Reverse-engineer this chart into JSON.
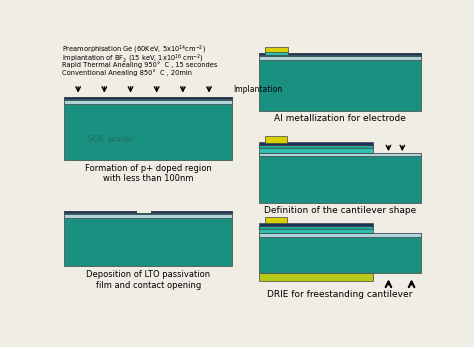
{
  "bg_color": "#f0ede5",
  "teal_dark": "#1a9080",
  "teal_mid": "#22a898",
  "teal_light": "#30c0b0",
  "blue_dark": "#1a3060",
  "blue_navy": "#203878",
  "light_blue": "#90c0cc",
  "light_blue2": "#b0d4dc",
  "yellow": "#d8d000",
  "yellow_green": "#b8c818",
  "gray_light": "#a8b8b8",
  "text_color": "#000000",
  "panel1_label": "Formation of p+ doped region\nwith less than 100nm",
  "panel2_label": "Deposition of LTO passivation\nfilm and contact opening",
  "panel3_label": "Al metallization for electrode",
  "panel4_label": "Definition of the cantilever shape",
  "panel5_label": "DRlE for freestanding cantilever",
  "top_texts": [
    "Preamorphisation Ge (60KeV, 5x10$^{14}$cm$^{-2}$)",
    "Implantation of BF$_2$ (15 keV, 1x10$^{16}$ cm$^{-2}$)",
    "Rapid Thermal Anealing 950°  C , 15 secondes",
    "Conventional Anealing 850°  C , 20min"
  ],
  "implantation_label": "Implantation"
}
